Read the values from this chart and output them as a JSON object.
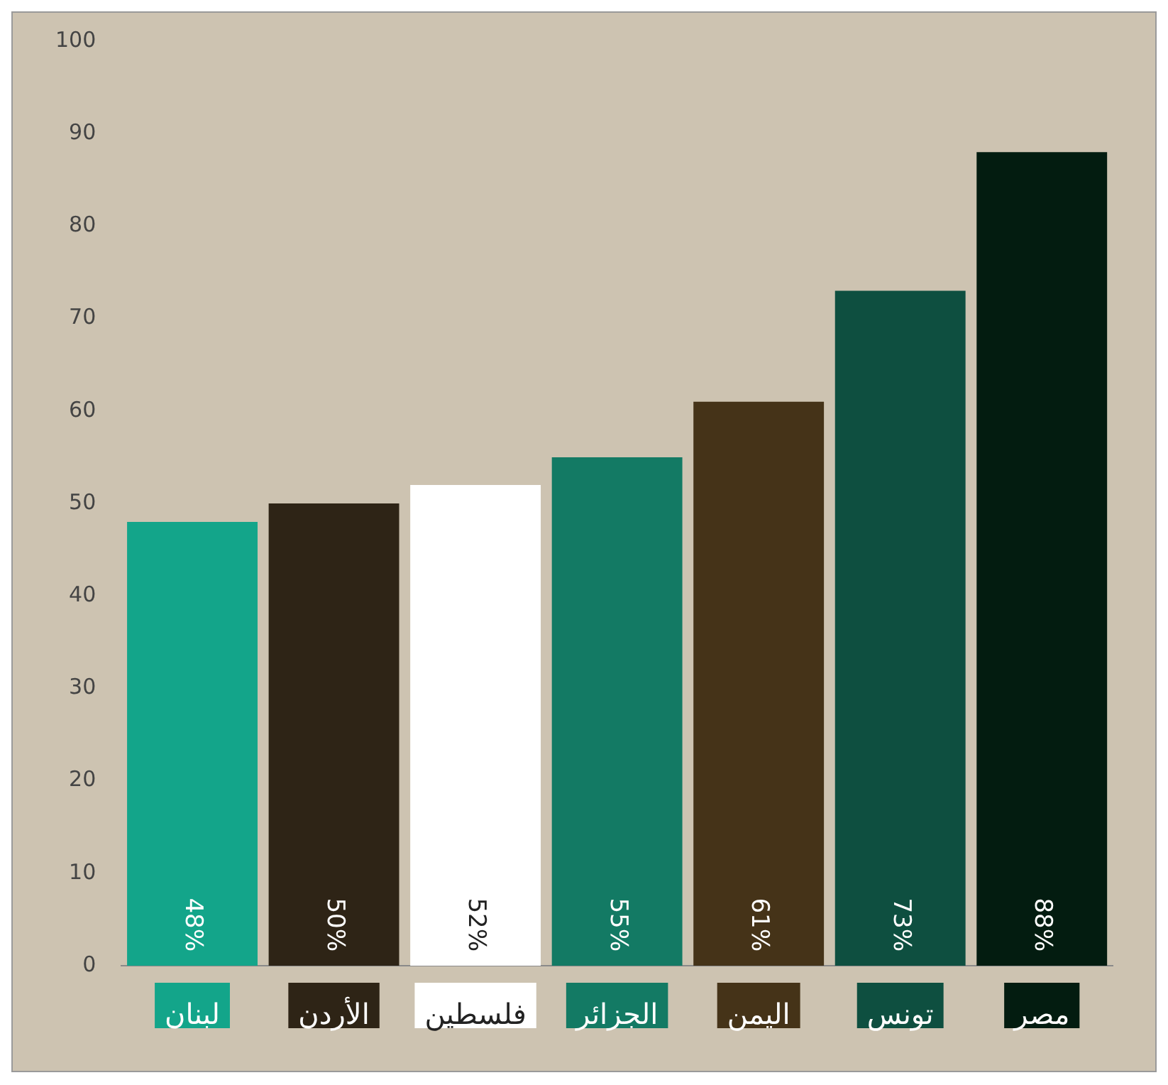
{
  "chart_data": {
    "type": "bar",
    "categories": [
      "لبنان",
      "الأردن",
      "فلسطين",
      "الجزائر",
      "اليمن",
      "تونس",
      "مصر"
    ],
    "values": [
      48,
      50,
      52,
      55,
      61,
      73,
      88
    ],
    "colors": [
      "#13a58a",
      "#2e2416",
      "#ffffff",
      "#137a64",
      "#453318",
      "#0e4f40",
      "#031c10"
    ],
    "value_labels": [
      "48%",
      "50%",
      "52%",
      "55%",
      "61%",
      "73%",
      "88%"
    ],
    "ylim": [
      0,
      100
    ],
    "yticks": [
      0,
      10,
      20,
      30,
      40,
      50,
      60,
      70,
      80,
      90,
      100
    ],
    "grid": false,
    "legend": false
  }
}
